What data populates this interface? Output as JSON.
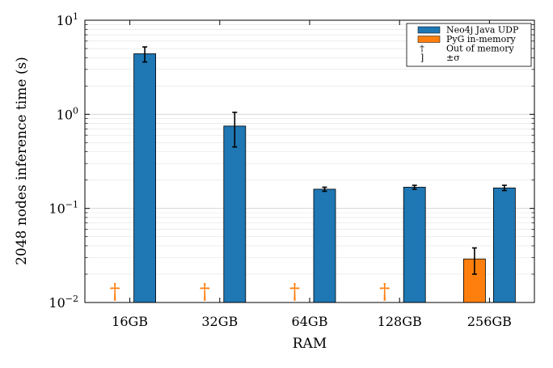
{
  "chart_data": {
    "type": "bar",
    "scale": {
      "y": "log"
    },
    "xlabel": "RAM",
    "ylabel": "2048 nodes inference time (s)",
    "ylim": [
      0.01,
      10
    ],
    "categories": [
      "16GB",
      "32GB",
      "64GB",
      "128GB",
      "256GB"
    ],
    "y_ticks": [
      {
        "value": 0.01,
        "base": "10",
        "exp": "−2"
      },
      {
        "value": 0.1,
        "base": "10",
        "exp": "−1"
      },
      {
        "value": 1,
        "base": "10",
        "exp": "0"
      },
      {
        "value": 10,
        "base": "10",
        "exp": "1"
      }
    ],
    "grid": true,
    "legend": {
      "position": "top-right",
      "entries": [
        {
          "kind": "swatch",
          "color": "#1f77b4",
          "label": "Neo4j Java UDP"
        },
        {
          "kind": "swatch",
          "color": "#ff7f0e",
          "label": "PyG in-memory"
        },
        {
          "kind": "symbol",
          "symbol": "†",
          "label": "Out of memory"
        },
        {
          "kind": "symbol",
          "symbol": "]",
          "label": "±σ"
        }
      ]
    },
    "series": [
      {
        "name": "PyG in-memory",
        "color": "#ff7f0e",
        "values": [
          null,
          null,
          null,
          null,
          0.029
        ],
        "error_low": [
          null,
          null,
          null,
          null,
          0.02
        ],
        "error_high": [
          null,
          null,
          null,
          null,
          0.038
        ],
        "out_of_memory": [
          true,
          true,
          true,
          true,
          false
        ]
      },
      {
        "name": "Neo4j Java UDP",
        "color": "#1f77b4",
        "values": [
          4.4,
          0.75,
          0.16,
          0.168,
          0.165
        ],
        "error_low": [
          3.6,
          0.45,
          0.152,
          0.16,
          0.155
        ],
        "error_high": [
          5.2,
          1.05,
          0.168,
          0.176,
          0.176
        ]
      }
    ],
    "out_of_memory_symbol": "†"
  }
}
